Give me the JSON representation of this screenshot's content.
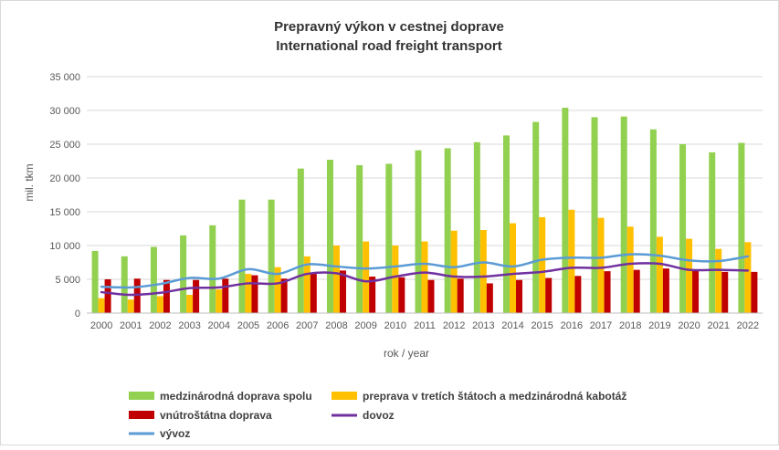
{
  "chart_data": {
    "type": "bar",
    "title": "Prepravný výkon v cestnej doprave",
    "subtitle": "International road freight transport",
    "xlabel": "rok / year",
    "ylabel": "mil. tkm",
    "ylim": [
      0,
      35000
    ],
    "yticks": [
      0,
      5000,
      10000,
      15000,
      20000,
      25000,
      30000,
      35000
    ],
    "ytick_labels": [
      "0",
      "5 000",
      "10 000",
      "15 000",
      "20 000",
      "25 000",
      "30 000",
      "35 000"
    ],
    "grid": true,
    "legend_position": "bottom",
    "categories": [
      "2000",
      "2001",
      "2002",
      "2003",
      "2004",
      "2005",
      "2006",
      "2007",
      "2008",
      "2009",
      "2010",
      "2011",
      "2012",
      "2013",
      "2014",
      "2015",
      "2016",
      "2017",
      "2018",
      "2019",
      "2020",
      "2021",
      "2022"
    ],
    "series": [
      {
        "name": "medzinárodná doprava spolu",
        "kind": "bar",
        "color": "#92d050",
        "values": [
          9200,
          8400,
          9800,
          11500,
          13000,
          16800,
          16800,
          21400,
          22700,
          21900,
          22100,
          24100,
          24400,
          25300,
          26300,
          28300,
          30400,
          29000,
          29100,
          27200,
          25000,
          23800,
          25200
        ]
      },
      {
        "name": "preprava v tretích štátoch a medzinárodná kabotáž",
        "kind": "bar",
        "color": "#ffc000",
        "values": [
          2200,
          2000,
          2500,
          2700,
          3500,
          5800,
          6800,
          8400,
          10000,
          10600,
          10000,
          10600,
          12200,
          12300,
          13300,
          14200,
          15300,
          14100,
          12800,
          11300,
          11000,
          9500,
          10500
        ]
      },
      {
        "name": "vnútroštátna doprava",
        "kind": "bar",
        "color": "#c00000",
        "values": [
          5000,
          5100,
          4900,
          4900,
          5100,
          5600,
          5100,
          5800,
          6300,
          5400,
          5300,
          4900,
          5100,
          4400,
          4900,
          5200,
          5500,
          6200,
          6400,
          6600,
          6300,
          6100,
          6100
        ]
      },
      {
        "name": "dovoz",
        "kind": "line",
        "color": "#7030a0",
        "values": [
          3100,
          2700,
          3000,
          3700,
          3800,
          4400,
          4400,
          5800,
          5900,
          4700,
          5400,
          6000,
          5400,
          5400,
          5800,
          6100,
          6700,
          6700,
          7300,
          7300,
          6400,
          6400,
          6300
        ]
      },
      {
        "name": "vývoz",
        "kind": "line",
        "color": "#5b9bd5",
        "values": [
          3900,
          3800,
          4300,
          5200,
          5100,
          6500,
          5800,
          7200,
          6900,
          6600,
          6900,
          7300,
          6800,
          7500,
          6900,
          7900,
          8200,
          8200,
          8700,
          8500,
          7800,
          7700,
          8400
        ]
      }
    ]
  }
}
